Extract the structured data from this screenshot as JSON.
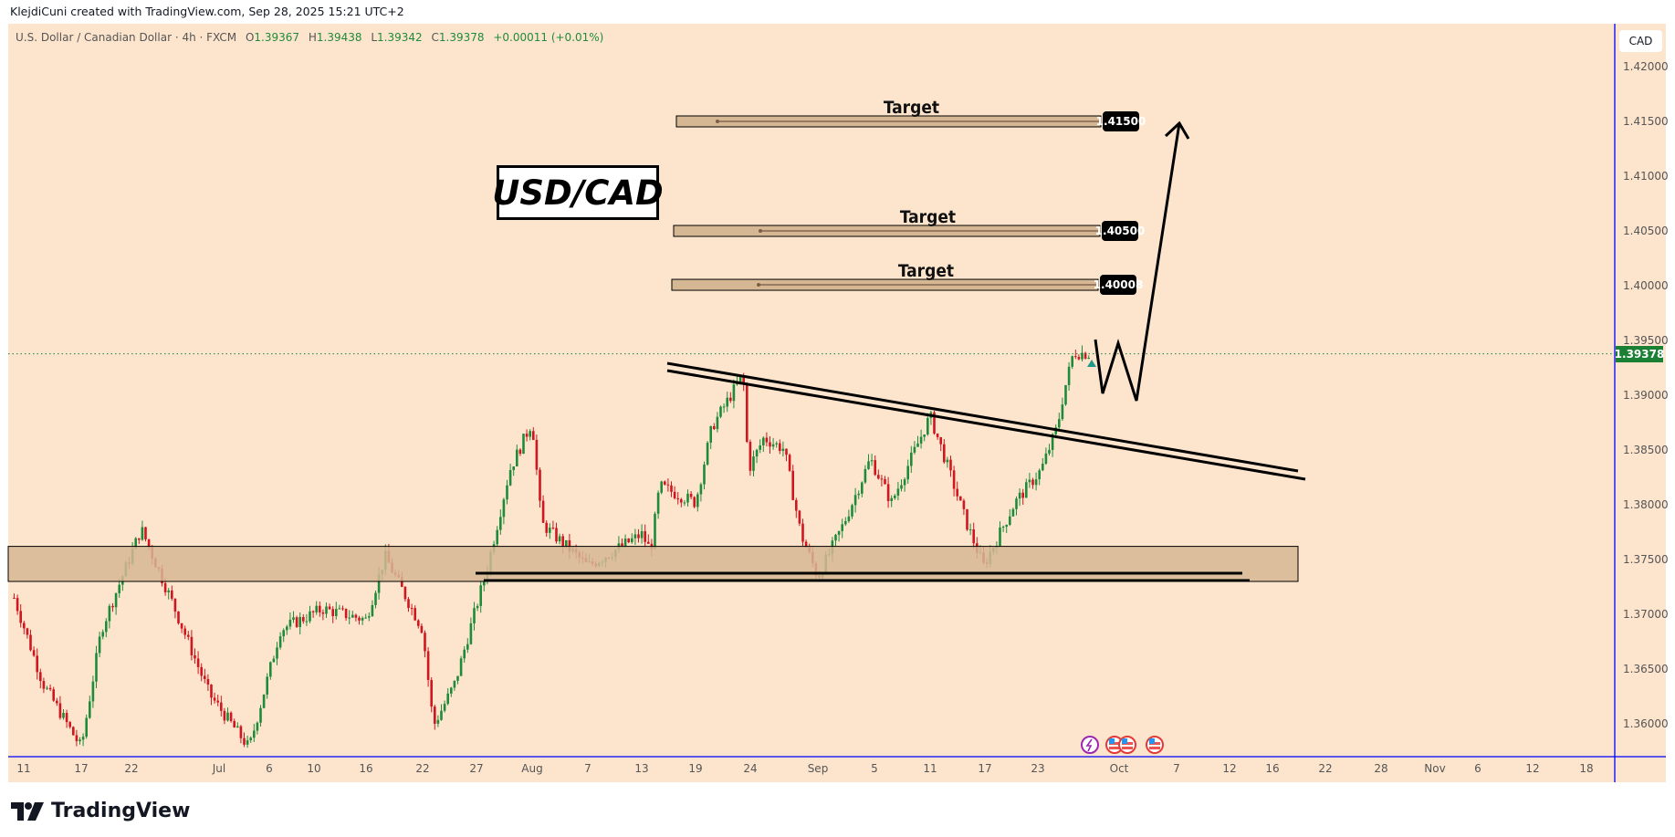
{
  "credit": "KlejdiCuni created with TradingView.com, Sep 28, 2025 15:21 UTC+2",
  "legend": {
    "symbol": "U.S. Dollar / Canadian Dollar · 4h · FXCM",
    "open_label": "O",
    "open": "1.39367",
    "high_label": "H",
    "high": "1.39438",
    "low_label": "L",
    "low": "1.39342",
    "close_label": "C",
    "close": "1.39378",
    "change": "+0.00011 (+0.01%)"
  },
  "currency_button": "CAD",
  "title_annotation": "USD/CAD",
  "brand": "TradingView",
  "colors": {
    "background": "#fde5cd",
    "up": "#1e8b3a",
    "down": "#d0161e",
    "zone": "#d6b794",
    "axis_line": "#0000ff",
    "last_price": "#1b7f34"
  },
  "chart_data": {
    "type": "candlestick",
    "timeframe": "4h",
    "ylim": [
      1.3565,
      1.4225
    ],
    "y_ticks": [
      "1.42000",
      "1.41500",
      "1.41000",
      "1.40500",
      "1.40000",
      "1.39500",
      "1.39000",
      "1.38500",
      "1.38000",
      "1.37500",
      "1.37000",
      "1.36500",
      "1.36000"
    ],
    "x_ticks": [
      {
        "label": "11",
        "date": "2025-06-11"
      },
      {
        "label": "17",
        "date": "2025-06-17"
      },
      {
        "label": "22",
        "date": "2025-06-22"
      },
      {
        "label": "Jul",
        "date": "2025-07-01"
      },
      {
        "label": "6",
        "date": "2025-07-06"
      },
      {
        "label": "10",
        "date": "2025-07-10"
      },
      {
        "label": "16",
        "date": "2025-07-16"
      },
      {
        "label": "22",
        "date": "2025-07-22"
      },
      {
        "label": "27",
        "date": "2025-07-27"
      },
      {
        "label": "Aug",
        "date": "2025-08-01"
      },
      {
        "label": "7",
        "date": "2025-08-07"
      },
      {
        "label": "13",
        "date": "2025-08-13"
      },
      {
        "label": "19",
        "date": "2025-08-19"
      },
      {
        "label": "24",
        "date": "2025-08-24"
      },
      {
        "label": "Sep",
        "date": "2025-09-01"
      },
      {
        "label": "5",
        "date": "2025-09-05"
      },
      {
        "label": "11",
        "date": "2025-09-11"
      },
      {
        "label": "17",
        "date": "2025-09-17"
      },
      {
        "label": "23",
        "date": "2025-09-23"
      },
      {
        "label": "Oct",
        "date": "2025-10-01"
      },
      {
        "label": "7",
        "date": "2025-10-07"
      },
      {
        "label": "12",
        "date": "2025-10-12"
      },
      {
        "label": "16",
        "date": "2025-10-16"
      },
      {
        "label": "22",
        "date": "2025-10-22"
      },
      {
        "label": "28",
        "date": "2025-10-28"
      },
      {
        "label": "Nov",
        "date": "2025-11-01"
      },
      {
        "label": "6",
        "date": "2025-11-06"
      },
      {
        "label": "12",
        "date": "2025-11-12"
      },
      {
        "label": "18",
        "date": "2025-11-18"
      }
    ],
    "price_path": [
      [
        "2025-06-10",
        1.3715
      ],
      [
        "2025-06-13",
        1.3637
      ],
      [
        "2025-06-17",
        1.3578
      ],
      [
        "2025-06-19",
        1.3686
      ],
      [
        "2025-06-23",
        1.3778
      ],
      [
        "2025-06-26",
        1.3715
      ],
      [
        "2025-06-30",
        1.3627
      ],
      [
        "2025-07-04",
        1.3578
      ],
      [
        "2025-07-07",
        1.3686
      ],
      [
        "2025-07-11",
        1.3705
      ],
      [
        "2025-07-16",
        1.3695
      ],
      [
        "2025-07-18",
        1.3753
      ],
      [
        "2025-07-22",
        1.3686
      ],
      [
        "2025-07-23",
        1.3598
      ],
      [
        "2025-07-25",
        1.3637
      ],
      [
        "2025-07-28",
        1.3744
      ],
      [
        "2025-07-30",
        1.3832
      ],
      [
        "2025-08-01",
        1.3876
      ],
      [
        "2025-08-02",
        1.3783
      ],
      [
        "2025-08-07",
        1.3744
      ],
      [
        "2025-08-13",
        1.3773
      ],
      [
        "2025-08-14",
        1.3758
      ],
      [
        "2025-08-15",
        1.3817
      ],
      [
        "2025-08-19",
        1.3802
      ],
      [
        "2025-08-20T12:00",
        1.3871
      ],
      [
        "2025-08-23T08:00",
        1.3919
      ],
      [
        "2025-08-23T20:00",
        1.3832
      ],
      [
        "2025-08-25T14:00",
        1.3861
      ],
      [
        "2025-08-28",
        1.3851
      ],
      [
        "2025-08-30",
        1.3773
      ],
      [
        "2025-09-01",
        1.3734
      ],
      [
        "2025-09-02T20:00",
        1.3783
      ],
      [
        "2025-09-04T17:00",
        1.3842
      ],
      [
        "2025-09-06T20:00",
        1.3802
      ],
      [
        "2025-09-11",
        1.3881
      ],
      [
        "2025-09-12T15:00",
        1.3842
      ],
      [
        "2025-09-15",
        1.3783
      ],
      [
        "2025-09-16T20:00",
        1.3744
      ],
      [
        "2025-09-20T10:00",
        1.3802
      ],
      [
        "2025-09-23T08:00",
        1.3832
      ],
      [
        "2025-09-24T22:00",
        1.3871
      ],
      [
        "2025-09-25T12:00",
        1.39
      ],
      [
        "2025-09-26T12:00",
        1.3939
      ],
      [
        "2025-09-28T03:00",
        1.39378
      ]
    ],
    "last_price": "1.39378",
    "annotations": {
      "targets": [
        {
          "text": "Target",
          "price": "1.41500"
        },
        {
          "text": "Target",
          "price": "1.40500"
        },
        {
          "text": "Target",
          "price": "1.40008"
        }
      ],
      "support_zone": [
        1.373,
        1.3762
      ],
      "descending_trendline": true,
      "projected_path": "zigzag then rally to 1.41500"
    },
    "events": [
      "lightning-event-icon",
      "us-flag-event-icon",
      "us-flag-event-icon",
      "us-flag-event-icon"
    ]
  }
}
